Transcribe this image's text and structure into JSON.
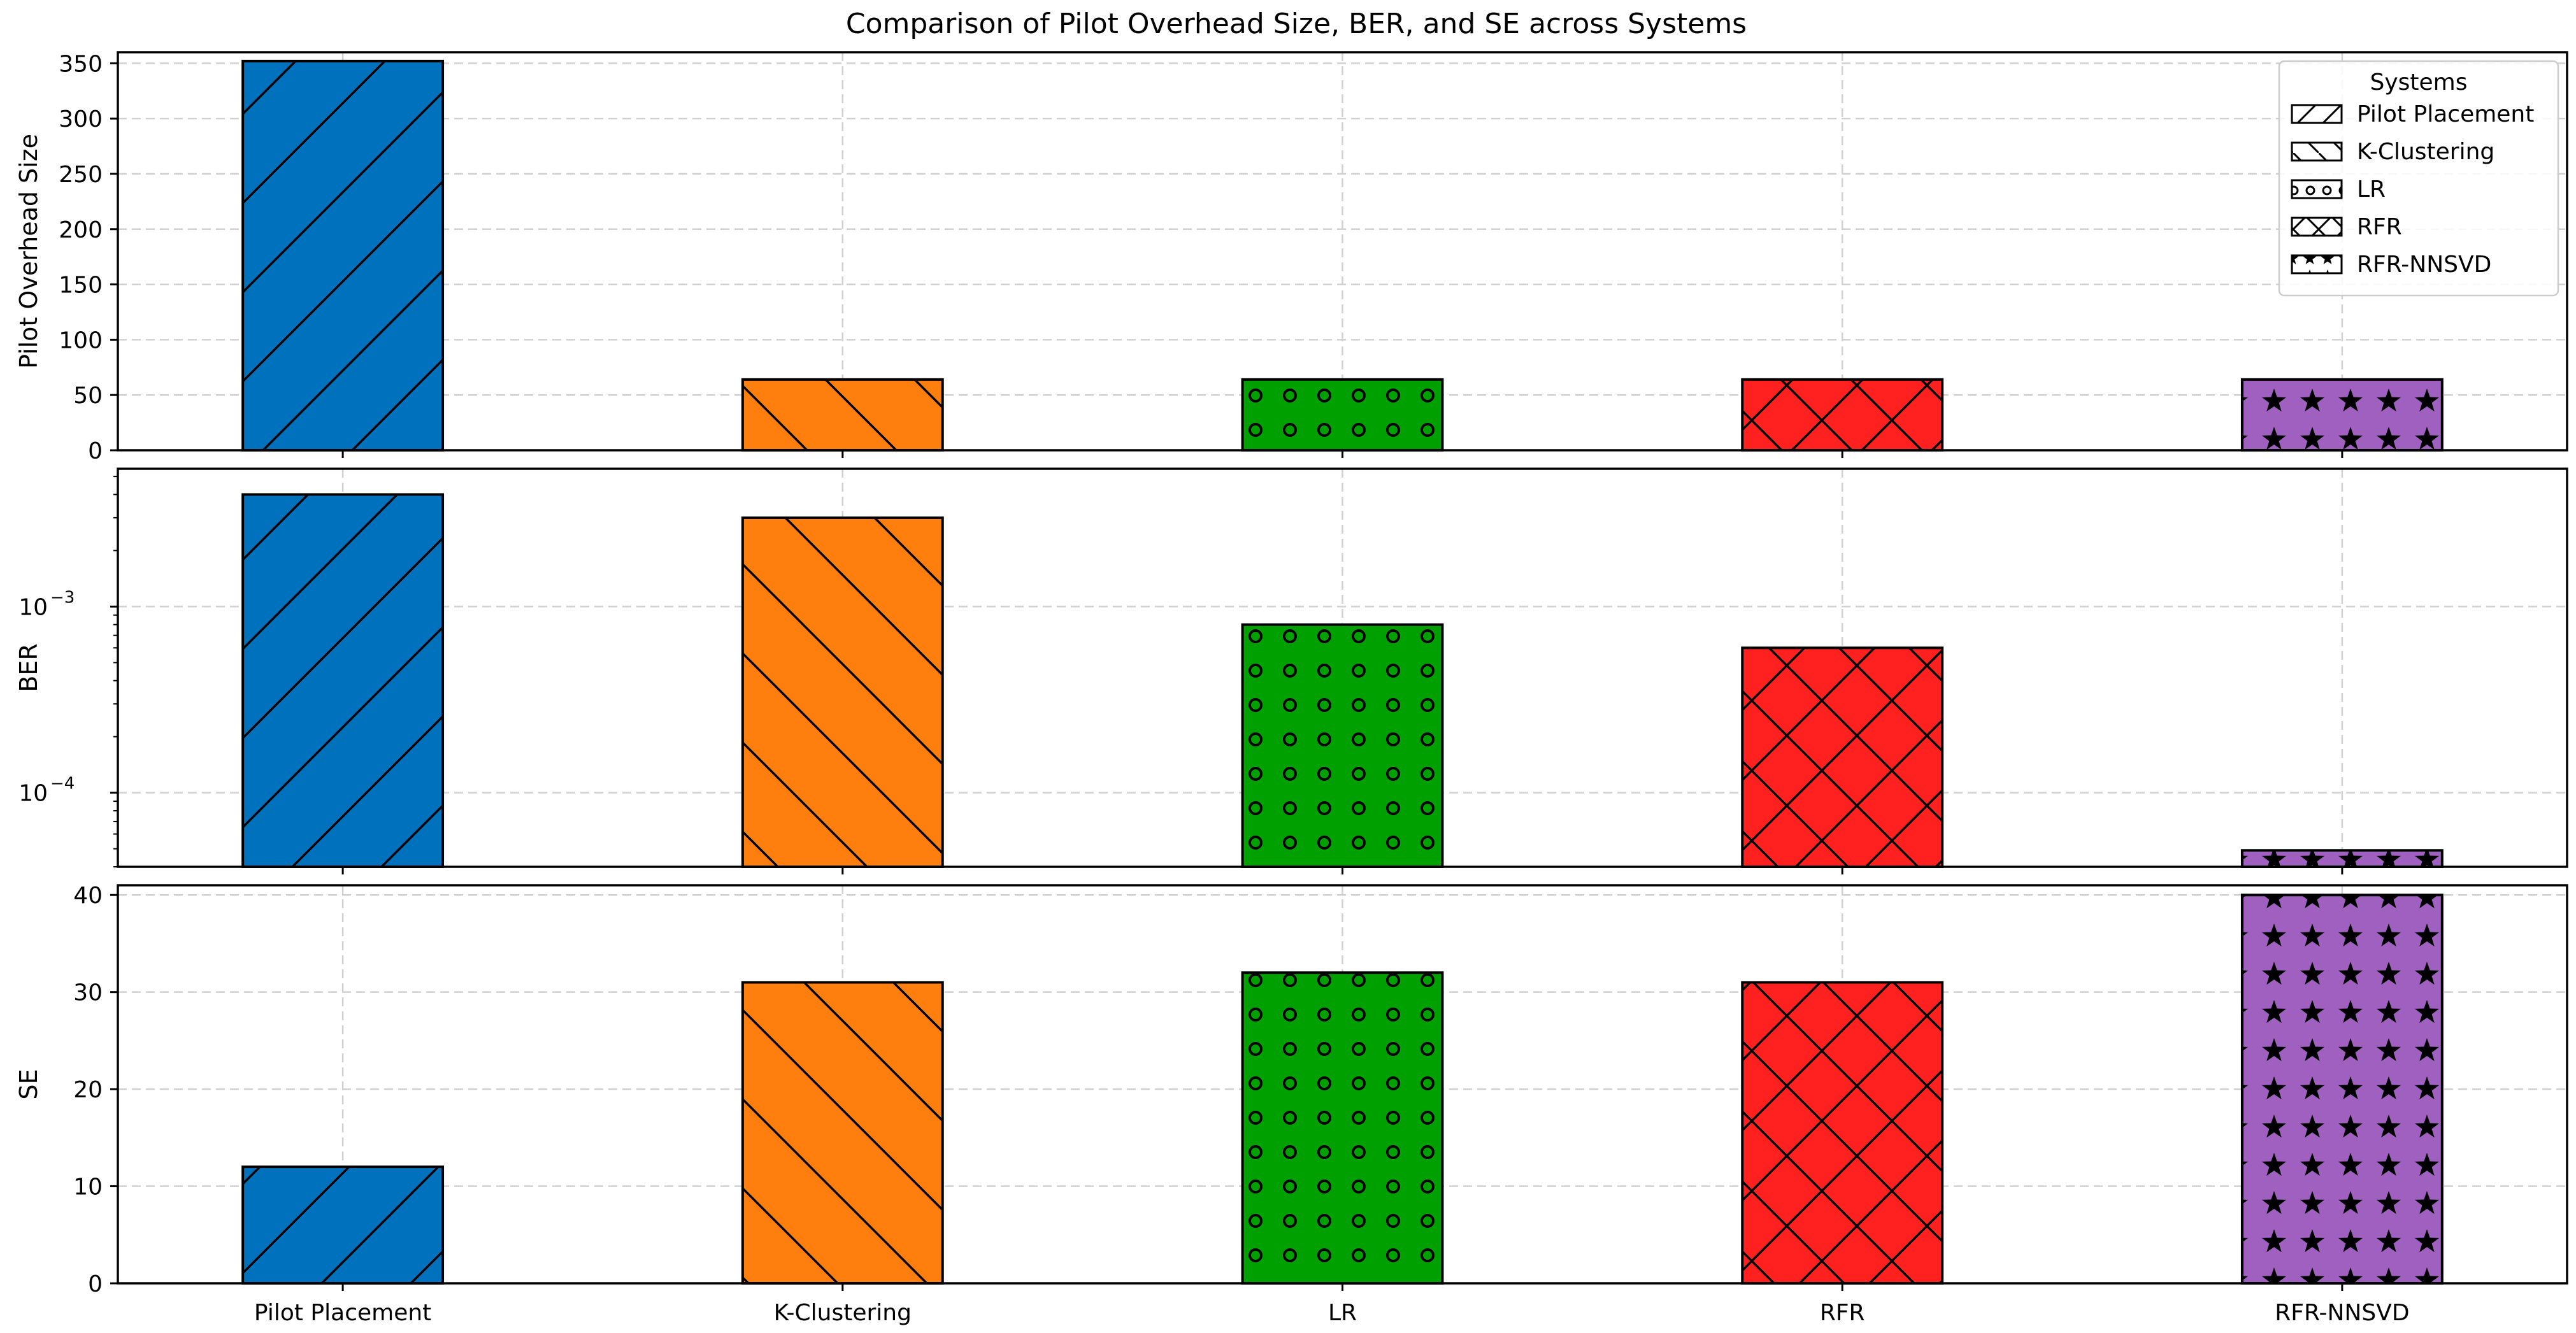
{
  "chart_data": {
    "type": "bar",
    "title": "Comparison of Pilot Overhead Size, BER, and SE across Systems",
    "categories": [
      "Pilot Placement",
      "K-Clustering",
      "LR",
      "RFR",
      "RFR-NNSVD"
    ],
    "colors": [
      "#0072BD",
      "#FF7F0E",
      "#00A000",
      "#FF2020",
      "#A060C0"
    ],
    "hatches": [
      "diagonal-forward",
      "diagonal-back",
      "circles",
      "cross",
      "stars"
    ],
    "panels": [
      {
        "id": "pilot",
        "ylabel": "Pilot Overhead Size",
        "scale": "linear",
        "ylim": [
          0,
          360
        ],
        "ticks": [
          0,
          50,
          100,
          150,
          200,
          250,
          300,
          350
        ],
        "tick_labels": [
          "0",
          "50",
          "100",
          "150",
          "200",
          "250",
          "300",
          "350"
        ],
        "values": [
          352,
          64,
          64,
          64,
          64
        ],
        "grid": true
      },
      {
        "id": "ber",
        "ylabel": "BER",
        "scale": "log",
        "ylim": [
          4e-05,
          0.0055
        ],
        "ticks": [
          0.0001,
          0.001
        ],
        "tick_labels": [
          "10",
          "10"
        ],
        "tick_exponents": [
          "−4",
          "−3"
        ],
        "values": [
          0.004,
          0.003,
          0.0008,
          0.0006,
          4.9e-05
        ],
        "grid": true
      },
      {
        "id": "se",
        "ylabel": "SE",
        "scale": "linear",
        "ylim": [
          0,
          41
        ],
        "ticks": [
          0,
          10,
          20,
          30,
          40
        ],
        "tick_labels": [
          "0",
          "10",
          "20",
          "30",
          "40"
        ],
        "values": [
          12,
          31,
          32,
          31,
          40
        ],
        "grid": true
      }
    ],
    "legend": {
      "title": "Systems",
      "placement": "top-right",
      "entries": [
        "Pilot Placement",
        "K-Clustering",
        "LR",
        "RFR",
        "RFR-NNSVD"
      ]
    }
  }
}
